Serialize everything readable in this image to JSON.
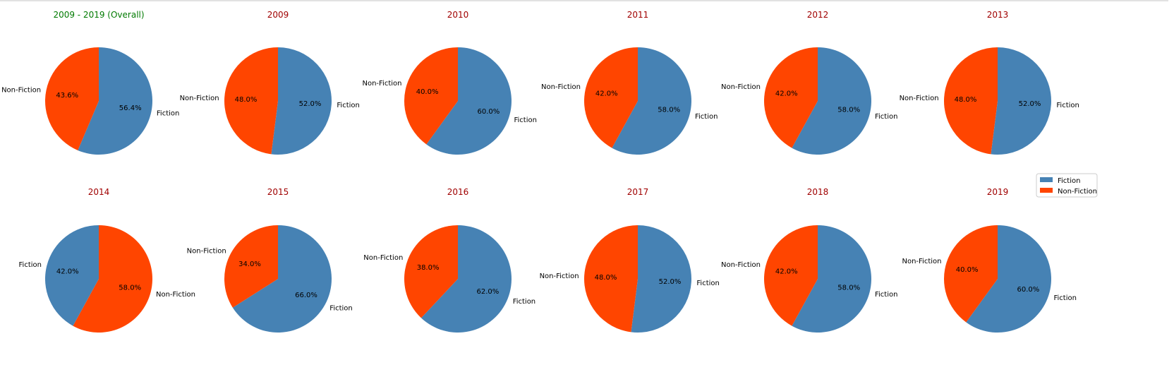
{
  "colors": {
    "fiction": "#4682b4",
    "non_fiction": "#ff4500",
    "overall_title": "#007a00",
    "year_title": "#a00000"
  },
  "legend": {
    "placement": "right",
    "entries": [
      "Fiction",
      "Non-Fiction"
    ]
  },
  "chart_data": [
    {
      "type": "pie",
      "title": "2009 - 2019 (Overall)",
      "labels": [
        "Fiction",
        "Non-Fiction"
      ],
      "values": [
        56.4,
        43.6
      ],
      "pct_labels": [
        "56.4%",
        "43.6%"
      ]
    },
    {
      "type": "pie",
      "title": "2009",
      "labels": [
        "Fiction",
        "Non-Fiction"
      ],
      "values": [
        52.0,
        48.0
      ],
      "pct_labels": [
        "52.0%",
        "48.0%"
      ]
    },
    {
      "type": "pie",
      "title": "2010",
      "labels": [
        "Fiction",
        "Non-Fiction"
      ],
      "values": [
        60.0,
        40.0
      ],
      "pct_labels": [
        "60.0%",
        "40.0%"
      ]
    },
    {
      "type": "pie",
      "title": "2011",
      "labels": [
        "Fiction",
        "Non-Fiction"
      ],
      "values": [
        58.0,
        42.0
      ],
      "pct_labels": [
        "58.0%",
        "42.0%"
      ]
    },
    {
      "type": "pie",
      "title": "2012",
      "labels": [
        "Fiction",
        "Non-Fiction"
      ],
      "values": [
        58.0,
        42.0
      ],
      "pct_labels": [
        "58.0%",
        "42.0%"
      ]
    },
    {
      "type": "pie",
      "title": "2013",
      "labels": [
        "Fiction",
        "Non-Fiction"
      ],
      "values": [
        52.0,
        48.0
      ],
      "pct_labels": [
        "52.0%",
        "48.0%"
      ]
    },
    {
      "type": "pie",
      "title": "2014",
      "labels": [
        "Non-Fiction",
        "Fiction"
      ],
      "values": [
        58.0,
        42.0
      ],
      "pct_labels": [
        "58.0%",
        "42.0%"
      ]
    },
    {
      "type": "pie",
      "title": "2015",
      "labels": [
        "Fiction",
        "Non-Fiction"
      ],
      "values": [
        66.0,
        34.0
      ],
      "pct_labels": [
        "66.0%",
        "34.0%"
      ]
    },
    {
      "type": "pie",
      "title": "2016",
      "labels": [
        "Fiction",
        "Non-Fiction"
      ],
      "values": [
        62.0,
        38.0
      ],
      "pct_labels": [
        "62.0%",
        "38.0%"
      ]
    },
    {
      "type": "pie",
      "title": "2017",
      "labels": [
        "Fiction",
        "Non-Fiction"
      ],
      "values": [
        52.0,
        48.0
      ],
      "pct_labels": [
        "52.0%",
        "48.0%"
      ]
    },
    {
      "type": "pie",
      "title": "2018",
      "labels": [
        "Fiction",
        "Non-Fiction"
      ],
      "values": [
        58.0,
        42.0
      ],
      "pct_labels": [
        "58.0%",
        "42.0%"
      ]
    },
    {
      "type": "pie",
      "title": "2019",
      "labels": [
        "Fiction",
        "Non-Fiction"
      ],
      "values": [
        60.0,
        40.0
      ],
      "pct_labels": [
        "60.0%",
        "40.0%"
      ]
    }
  ]
}
